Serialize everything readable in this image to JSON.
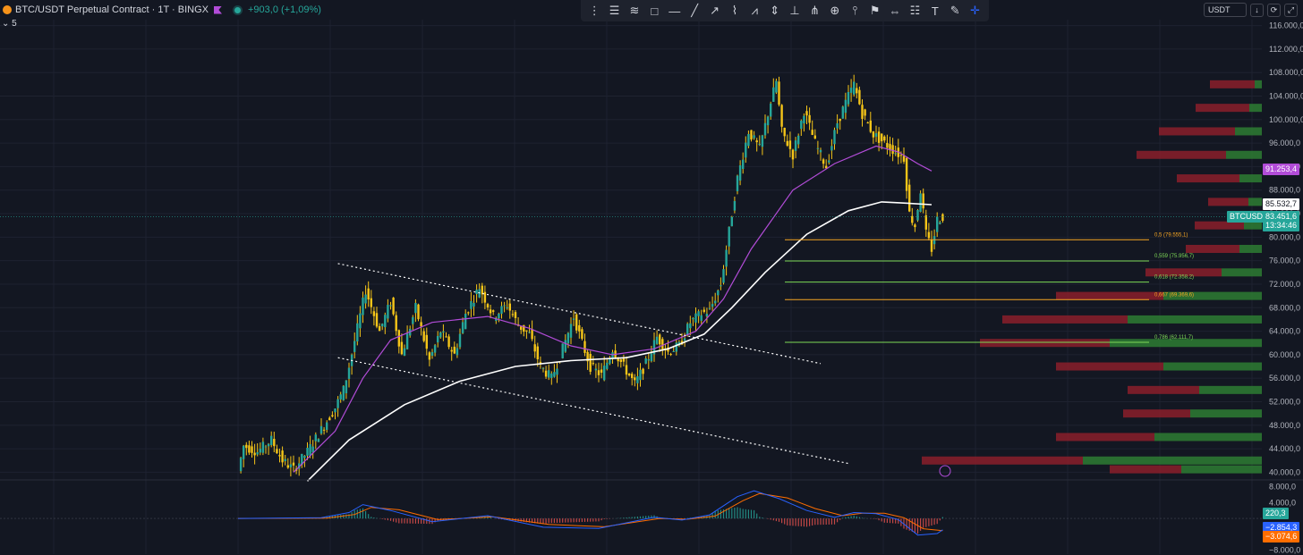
{
  "header": {
    "symbol_title": "BTC/USDT Perpetual Contract · 1T · BINGX",
    "change": "+903,0 (+1,09%)",
    "indicator_count": "5"
  },
  "topright": {
    "currency": "USDT"
  },
  "toolbar": {
    "tools": [
      "drag-handle",
      "lines-menu",
      "fib-retracement",
      "rectangle",
      "horizontal-line",
      "trend-line",
      "ray",
      "path",
      "pattern",
      "projection",
      "long-position",
      "fib-fan",
      "add-circle",
      "pin-marker",
      "flag-marker",
      "measure",
      "note",
      "text",
      "brush",
      "crosshair"
    ]
  },
  "price_labels": {
    "ma_violet": "91.253,4",
    "ma_white": "85.532,7",
    "symbol_tag": "BTCUSDT.P",
    "last_price": "83.451,6",
    "countdown": "13:34:46"
  },
  "macd_labels": {
    "histogram": "220,3",
    "macd": "−2.854,3",
    "signal": "−3.074,6"
  },
  "colors": {
    "background": "#131722",
    "up": "#26a69a",
    "down": "#ef5350",
    "wick_up": "#f5c518",
    "ma_violet": "#b24cd8",
    "ma_white": "#ffffff",
    "fib_orange": "#f6a623",
    "fib_green": "#7ed957",
    "vp_green": "#2e7d32",
    "vp_red": "#8b1e2a",
    "macd": "#2962ff",
    "signal": "#ff6d00"
  },
  "chart_data": [
    {
      "type": "line",
      "title": "",
      "yaxis": {
        "ticks": [
          "116.000,0",
          "112.000,0",
          "108.000,0",
          "104.000,0",
          "100.000,0",
          "96.000,0",
          "92.000,0",
          "88.000,0",
          "84.000,0",
          "80.000,0",
          "76.000,0",
          "72.000,0",
          "68.000,0",
          "64.000,0",
          "60.000,0",
          "56.000,0",
          "52.000,0",
          "48.000,0",
          "44.000,0",
          "40.000,0"
        ],
        "range": [
          39000,
          117000
        ]
      },
      "price_series_keypoints": [
        [
          0,
          40200
        ],
        [
          2,
          44500
        ],
        [
          7,
          43500
        ],
        [
          12,
          45500
        ],
        [
          16,
          42000
        ],
        [
          20,
          40500
        ],
        [
          25,
          43500
        ],
        [
          31,
          48000
        ],
        [
          35,
          51000
        ],
        [
          38,
          54000
        ],
        [
          40,
          58000
        ],
        [
          43,
          64500
        ],
        [
          46,
          71000
        ],
        [
          51,
          64000
        ],
        [
          55,
          69000
        ],
        [
          59,
          60000
        ],
        [
          64,
          68000
        ],
        [
          69,
          59000
        ],
        [
          73,
          64000
        ],
        [
          78,
          60000
        ],
        [
          82,
          67000
        ],
        [
          87,
          71500
        ],
        [
          92,
          66500
        ],
        [
          97,
          68500
        ],
        [
          101,
          65000
        ],
        [
          105,
          63500
        ],
        [
          109,
          58000
        ],
        [
          113,
          56000
        ],
        [
          117,
          61000
        ],
        [
          121,
          66500
        ],
        [
          124,
          62000
        ],
        [
          127,
          58000
        ],
        [
          131,
          56500
        ],
        [
          135,
          61000
        ],
        [
          139,
          58000
        ],
        [
          143,
          55000
        ],
        [
          147,
          58500
        ],
        [
          151,
          63000
        ],
        [
          155,
          60500
        ],
        [
          159,
          61500
        ],
        [
          163,
          65500
        ],
        [
          167,
          67000
        ],
        [
          170,
          67500
        ],
        [
          174,
          72000
        ],
        [
          177,
          81000
        ],
        [
          180,
          90000
        ],
        [
          184,
          98000
        ],
        [
          188,
          95000
        ],
        [
          192,
          103000
        ],
        [
          194,
          106500
        ],
        [
          196,
          98000
        ],
        [
          200,
          94000
        ],
        [
          204,
          101500
        ],
        [
          208,
          96000
        ],
        [
          212,
          92000
        ],
        [
          216,
          99500
        ],
        [
          220,
          104000
        ],
        [
          222,
          106000
        ],
        [
          225,
          101000
        ],
        [
          229,
          97500
        ],
        [
          233,
          96000
        ],
        [
          237,
          94500
        ],
        [
          240,
          93500
        ],
        [
          242,
          84000
        ],
        [
          244,
          82000
        ],
        [
          246,
          88000
        ],
        [
          248,
          80500
        ],
        [
          250,
          78000
        ],
        [
          252,
          83000
        ],
        [
          254,
          83451
        ]
      ],
      "ma_violet": [
        [
          20,
          40000
        ],
        [
          35,
          47000
        ],
        [
          45,
          56000
        ],
        [
          55,
          62500
        ],
        [
          70,
          65500
        ],
        [
          90,
          66500
        ],
        [
          105,
          64500
        ],
        [
          120,
          61500
        ],
        [
          135,
          60000
        ],
        [
          150,
          61000
        ],
        [
          165,
          64000
        ],
        [
          175,
          69500
        ],
        [
          185,
          78000
        ],
        [
          200,
          88000
        ],
        [
          215,
          92500
        ],
        [
          230,
          95500
        ],
        [
          238,
          94500
        ],
        [
          245,
          92500
        ],
        [
          250,
          91253
        ]
      ],
      "ma_white": [
        [
          25,
          38500
        ],
        [
          40,
          45500
        ],
        [
          60,
          51500
        ],
        [
          80,
          55500
        ],
        [
          100,
          58000
        ],
        [
          120,
          59000
        ],
        [
          140,
          59500
        ],
        [
          155,
          61000
        ],
        [
          168,
          63500
        ],
        [
          178,
          68000
        ],
        [
          190,
          74000
        ],
        [
          205,
          80500
        ],
        [
          220,
          84500
        ],
        [
          232,
          86000
        ],
        [
          240,
          85800
        ],
        [
          250,
          85532
        ]
      ],
      "channel_upper": [
        [
          36,
          75500
        ],
        [
          210,
          58500
        ]
      ],
      "channel_lower": [
        [
          36,
          59500
        ],
        [
          220,
          41500
        ]
      ],
      "fib_levels": [
        {
          "ratio": "0,5 (79.555,1)",
          "price": 79555.1,
          "color": "orange"
        },
        {
          "ratio": "0,559 (75.956,7)",
          "price": 75956.7,
          "color": "green"
        },
        {
          "ratio": "0,618 (72.358,2)",
          "price": 72358.2,
          "color": "green"
        },
        {
          "ratio": "0,667 (69.369,6)",
          "price": 69369.6,
          "color": "orange"
        },
        {
          "ratio": "0,786 (62.111,7)",
          "price": 62111.7,
          "color": "green"
        }
      ],
      "volume_profile": [
        {
          "price": 106000,
          "green": 8,
          "red": 50
        },
        {
          "price": 102000,
          "green": 14,
          "red": 60
        },
        {
          "price": 98000,
          "green": 30,
          "red": 85
        },
        {
          "price": 94000,
          "green": 40,
          "red": 100
        },
        {
          "price": 90000,
          "green": 25,
          "red": 70
        },
        {
          "price": 86000,
          "green": 15,
          "red": 45
        },
        {
          "price": 82000,
          "green": 20,
          "red": 55
        },
        {
          "price": 78000,
          "green": 25,
          "red": 60
        },
        {
          "price": 74000,
          "green": 45,
          "red": 85
        },
        {
          "price": 70000,
          "green": 110,
          "red": 120
        },
        {
          "price": 66000,
          "green": 150,
          "red": 140
        },
        {
          "price": 62000,
          "green": 170,
          "red": 145
        },
        {
          "price": 58000,
          "green": 110,
          "red": 120
        },
        {
          "price": 54000,
          "green": 70,
          "red": 80
        },
        {
          "price": 50000,
          "green": 80,
          "red": 75
        },
        {
          "price": 46000,
          "green": 120,
          "red": 110
        },
        {
          "price": 42000,
          "green": 200,
          "red": 180
        },
        {
          "price": 40500,
          "green": 90,
          "red": 80
        }
      ]
    },
    {
      "type": "line",
      "title": "",
      "yaxis": {
        "ticks": [
          "8.000,0",
          "4.000,0",
          "−8.000,0"
        ],
        "range": [
          -9000,
          9500
        ]
      },
      "macd_keypoints": [
        [
          0,
          0
        ],
        [
          30,
          200
        ],
        [
          40,
          1500
        ],
        [
          45,
          3500
        ],
        [
          55,
          2000
        ],
        [
          70,
          -800
        ],
        [
          90,
          700
        ],
        [
          110,
          -2200
        ],
        [
          130,
          -2500
        ],
        [
          150,
          300
        ],
        [
          160,
          -400
        ],
        [
          170,
          900
        ],
        [
          180,
          5500
        ],
        [
          186,
          7000
        ],
        [
          195,
          5000
        ],
        [
          205,
          2000
        ],
        [
          215,
          300
        ],
        [
          222,
          1500
        ],
        [
          230,
          1200
        ],
        [
          238,
          -300
        ],
        [
          245,
          -4200
        ],
        [
          252,
          -3800
        ],
        [
          254,
          -2854
        ]
      ],
      "signal_keypoints": [
        [
          0,
          0
        ],
        [
          32,
          100
        ],
        [
          42,
          1000
        ],
        [
          48,
          2800
        ],
        [
          58,
          2200
        ],
        [
          72,
          -300
        ],
        [
          92,
          400
        ],
        [
          112,
          -1500
        ],
        [
          132,
          -2100
        ],
        [
          152,
          0
        ],
        [
          162,
          -200
        ],
        [
          172,
          600
        ],
        [
          182,
          4500
        ],
        [
          188,
          6300
        ],
        [
          198,
          5200
        ],
        [
          208,
          2500
        ],
        [
          218,
          700
        ],
        [
          225,
          1300
        ],
        [
          233,
          1300
        ],
        [
          240,
          200
        ],
        [
          247,
          -2600
        ],
        [
          254,
          -3074
        ]
      ]
    }
  ]
}
